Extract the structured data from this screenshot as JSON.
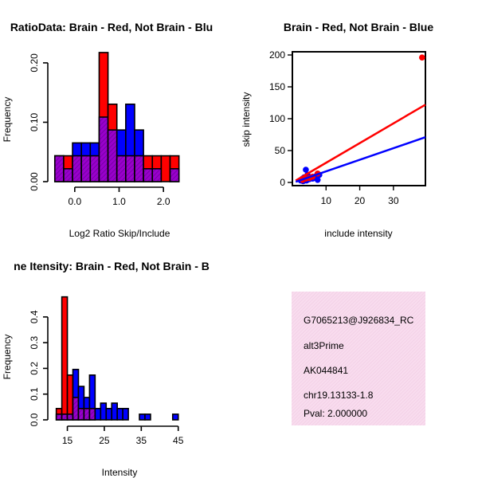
{
  "chart_data": [
    {
      "type": "histogram",
      "title": "RatioData: Brain - Red, Not Brain - Blu",
      "xlabel": "Log2 Ratio Skip/Include",
      "ylabel": "Frequency",
      "xticks": [
        "0.0",
        "1.0",
        "2.0"
      ],
      "yticks": [
        "0.00",
        "0.10",
        "0.20"
      ],
      "xlim": [
        -0.5,
        2.5
      ],
      "ylim": [
        0,
        0.22
      ],
      "bin_start": -0.45,
      "bin_width": 0.2,
      "series": [
        {
          "name": "Brain",
          "color": "#ff0000",
          "values": [
            0.0435,
            0.0435,
            0.0435,
            0.0435,
            0.0435,
            0.2174,
            0.1304,
            0.0435,
            0.0435,
            0.0435,
            0.0435,
            0.0435,
            0.0435,
            0.0435
          ]
        },
        {
          "name": "Not Brain",
          "color": "#0000ff",
          "values": [
            0.0435,
            0.0217,
            0.0652,
            0.0652,
            0.0652,
            0.1087,
            0.087,
            0.087,
            0.1304,
            0.087,
            0.0217,
            0.0217,
            0.0,
            0.0217
          ]
        }
      ],
      "overlap_color": "#9900cc"
    },
    {
      "type": "scatter",
      "title": "Brain - Red, Not Brain - Blue",
      "xlabel": "include intensity",
      "ylabel": "skip intensity",
      "xticks": [
        "10",
        "20",
        "30"
      ],
      "yticks": [
        "0",
        "50",
        "100",
        "150",
        "200"
      ],
      "xlim": [
        0,
        39.5
      ],
      "ylim": [
        -5,
        205
      ],
      "series": [
        {
          "name": "Brain",
          "color": "#ff0000",
          "points": [
            [
              38.5,
              196
            ],
            [
              3,
              4
            ],
            [
              4,
              6
            ],
            [
              5,
              7
            ],
            [
              6,
              9
            ],
            [
              7.5,
              14
            ]
          ],
          "fit": [
            [
              1,
              3
            ],
            [
              39.5,
              122
            ]
          ]
        },
        {
          "name": "Not Brain",
          "color": "#0000ff",
          "points": [
            [
              2.5,
              3
            ],
            [
              3,
              6
            ],
            [
              3.5,
              8
            ],
            [
              4,
              20
            ],
            [
              4.5,
              12
            ],
            [
              5,
              5
            ],
            [
              5.5,
              8
            ],
            [
              6,
              6
            ],
            [
              6.5,
              7
            ],
            [
              7,
              10
            ],
            [
              7.5,
              4
            ],
            [
              8,
              12
            ],
            [
              3.2,
              2
            ],
            [
              4.2,
              3
            ]
          ],
          "fit": [
            [
              1,
              1
            ],
            [
              39.5,
              71
            ]
          ]
        }
      ]
    },
    {
      "type": "histogram",
      "title": "ne Itensity: Brain - Red, Not Brain - B",
      "xlabel": "Intensity",
      "ylabel": "Frequency",
      "xticks": [
        "15",
        "25",
        "35",
        "45"
      ],
      "yticks": [
        "0.0",
        "0.1",
        "0.2",
        "0.3",
        "0.4"
      ],
      "xlim": [
        11,
        47
      ],
      "ylim": [
        0,
        0.48
      ],
      "bin_start": 12,
      "bin_width": 1.5,
      "series": [
        {
          "name": "Brain",
          "color": "#ff0000",
          "values": [
            0.044,
            0.478,
            0.174,
            0.087,
            0.044,
            0.044,
            0.044,
            0,
            0,
            0,
            0,
            0,
            0,
            0,
            0,
            0,
            0,
            0,
            0,
            0,
            0,
            0
          ]
        },
        {
          "name": "Not Brain",
          "color": "#0000ff",
          "values": [
            0.022,
            0.022,
            0.022,
            0.196,
            0.13,
            0.087,
            0.174,
            0.044,
            0.065,
            0.044,
            0.065,
            0.044,
            0.044,
            0,
            0,
            0.022,
            0.022,
            0,
            0,
            0,
            0,
            0.022
          ]
        }
      ],
      "overlap_color": "#9900cc"
    }
  ],
  "info_panel": {
    "background": "#f6d6e9",
    "lines": [
      "G7065213@J926834_RC",
      "alt3Prime",
      "AK044841",
      "chr19.13133-1.8"
    ],
    "pval": "Pval: 2.000000",
    "pval_color": "#990000"
  }
}
